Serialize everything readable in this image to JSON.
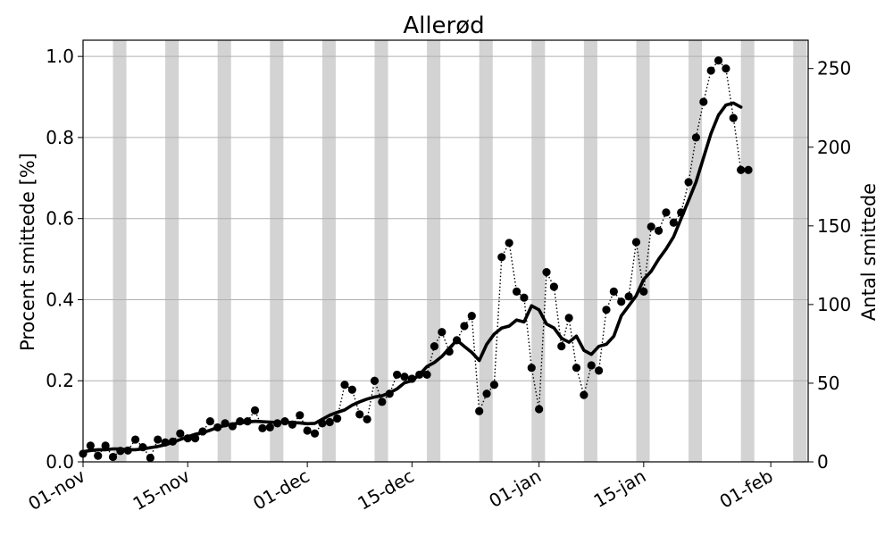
{
  "chart_data": {
    "type": "line",
    "title": "Allerød",
    "ylabel": "Procent smittede [%]",
    "ylabel_right": "Antal smittede",
    "ylim": [
      0,
      1.04
    ],
    "ylim_right": [
      0,
      268
    ],
    "yticks": [
      "0.0",
      "0.2",
      "0.4",
      "0.6",
      "0.8",
      "1.0"
    ],
    "yticks_right": [
      "0",
      "50",
      "100",
      "150",
      "200",
      "250"
    ],
    "xlim": [
      "2020-11-01",
      "2021-02-06"
    ],
    "xticks": [
      {
        "date": "2020-11-01",
        "label": "01-nov"
      },
      {
        "date": "2020-11-15",
        "label": "15-nov"
      },
      {
        "date": "2020-12-01",
        "label": "01-dec"
      },
      {
        "date": "2020-12-15",
        "label": "15-dec"
      },
      {
        "date": "2021-01-01",
        "label": "01-jan"
      },
      {
        "date": "2021-01-15",
        "label": "15-jan"
      },
      {
        "date": "2021-02-01",
        "label": "01-feb"
      }
    ],
    "grid": "horizontal",
    "weekend_shading": [
      "2020-11-05",
      "2020-11-12",
      "2020-11-19",
      "2020-11-26",
      "2020-12-03",
      "2020-12-10",
      "2020-12-17",
      "2020-12-24",
      "2020-12-31",
      "2021-01-07",
      "2021-01-14",
      "2021-01-21",
      "2021-01-28",
      "2021-02-04"
    ],
    "series": [
      {
        "style": "dotted-markers",
        "color": "#000000",
        "x": [
          "2020-11-01",
          "2020-11-02",
          "2020-11-03",
          "2020-11-04",
          "2020-11-05",
          "2020-11-06",
          "2020-11-07",
          "2020-11-08",
          "2020-11-09",
          "2020-11-10",
          "2020-11-11",
          "2020-11-12",
          "2020-11-13",
          "2020-11-14",
          "2020-11-15",
          "2020-11-16",
          "2020-11-17",
          "2020-11-18",
          "2020-11-19",
          "2020-11-20",
          "2020-11-21",
          "2020-11-22",
          "2020-11-23",
          "2020-11-24",
          "2020-11-25",
          "2020-11-26",
          "2020-11-27",
          "2020-11-28",
          "2020-11-29",
          "2020-11-30",
          "2020-12-01",
          "2020-12-02",
          "2020-12-03",
          "2020-12-04",
          "2020-12-05",
          "2020-12-06",
          "2020-12-07",
          "2020-12-08",
          "2020-12-09",
          "2020-12-10",
          "2020-12-11",
          "2020-12-12",
          "2020-12-13",
          "2020-12-14",
          "2020-12-15",
          "2020-12-16",
          "2020-12-17",
          "2020-12-18",
          "2020-12-19",
          "2020-12-20",
          "2020-12-21",
          "2020-12-22",
          "2020-12-23",
          "2020-12-24",
          "2020-12-25",
          "2020-12-26",
          "2020-12-27",
          "2020-12-28",
          "2020-12-29",
          "2020-12-30",
          "2020-12-31",
          "2021-01-01",
          "2021-01-02",
          "2021-01-03",
          "2021-01-04",
          "2021-01-05",
          "2021-01-06",
          "2021-01-07",
          "2021-01-08",
          "2021-01-09",
          "2021-01-10",
          "2021-01-11",
          "2021-01-12",
          "2021-01-13",
          "2021-01-14",
          "2021-01-15",
          "2021-01-16",
          "2021-01-17",
          "2021-01-18",
          "2021-01-19",
          "2021-01-20",
          "2021-01-21",
          "2021-01-22",
          "2021-01-23",
          "2021-01-24",
          "2021-01-25",
          "2021-01-26",
          "2021-01-27",
          "2021-01-28",
          "2021-01-29"
        ],
        "values": [
          0.02,
          0.04,
          0.015,
          0.04,
          0.012,
          0.027,
          0.028,
          0.055,
          0.036,
          0.01,
          0.055,
          0.048,
          0.05,
          0.07,
          0.058,
          0.058,
          0.075,
          0.1,
          0.085,
          0.095,
          0.088,
          0.1,
          0.1,
          0.127,
          0.083,
          0.085,
          0.095,
          0.1,
          0.092,
          0.115,
          0.077,
          0.07,
          0.095,
          0.098,
          0.107,
          0.19,
          0.178,
          0.117,
          0.105,
          0.2,
          0.148,
          0.168,
          0.215,
          0.21,
          0.205,
          0.215,
          0.215,
          0.285,
          0.32,
          0.272,
          0.3,
          0.335,
          0.36,
          0.125,
          0.168,
          0.19,
          0.505,
          0.54,
          0.42,
          0.405,
          0.232,
          0.13,
          0.468,
          0.432,
          0.285,
          0.355,
          0.232,
          0.165,
          0.238,
          0.225,
          0.375,
          0.42,
          0.395,
          0.408,
          0.542,
          0.42,
          0.58,
          0.57,
          0.615,
          0.59,
          0.615,
          0.69,
          0.8,
          0.888,
          0.965,
          0.99,
          0.97,
          0.848,
          0.72,
          0.72
        ]
      },
      {
        "style": "thick-line",
        "color": "#000000",
        "x": [
          "2020-11-01",
          "2020-11-02",
          "2020-11-03",
          "2020-11-04",
          "2020-11-05",
          "2020-11-06",
          "2020-11-07",
          "2020-11-08",
          "2020-11-09",
          "2020-11-10",
          "2020-11-11",
          "2020-11-12",
          "2020-11-13",
          "2020-11-14",
          "2020-11-15",
          "2020-11-16",
          "2020-11-17",
          "2020-11-18",
          "2020-11-19",
          "2020-11-20",
          "2020-11-21",
          "2020-11-22",
          "2020-11-23",
          "2020-11-24",
          "2020-11-25",
          "2020-11-26",
          "2020-11-27",
          "2020-11-28",
          "2020-11-29",
          "2020-11-30",
          "2020-12-01",
          "2020-12-02",
          "2020-12-03",
          "2020-12-04",
          "2020-12-05",
          "2020-12-06",
          "2020-12-07",
          "2020-12-08",
          "2020-12-09",
          "2020-12-10",
          "2020-12-11",
          "2020-12-12",
          "2020-12-13",
          "2020-12-14",
          "2020-12-15",
          "2020-12-16",
          "2020-12-17",
          "2020-12-18",
          "2020-12-19",
          "2020-12-20",
          "2020-12-21",
          "2020-12-22",
          "2020-12-23",
          "2020-12-24",
          "2020-12-25",
          "2020-12-26",
          "2020-12-27",
          "2020-12-28",
          "2020-12-29",
          "2020-12-30",
          "2020-12-31",
          "2021-01-01",
          "2021-01-02",
          "2021-01-03",
          "2021-01-04",
          "2021-01-05",
          "2021-01-06",
          "2021-01-07",
          "2021-01-08",
          "2021-01-09",
          "2021-01-10",
          "2021-01-11",
          "2021-01-12",
          "2021-01-13",
          "2021-01-14",
          "2021-01-15",
          "2021-01-16",
          "2021-01-17",
          "2021-01-18",
          "2021-01-19",
          "2021-01-20",
          "2021-01-21",
          "2021-01-22",
          "2021-01-23",
          "2021-01-24",
          "2021-01-25",
          "2021-01-26",
          "2021-01-27",
          "2021-01-28"
        ],
        "values": [
          0.025,
          0.028,
          0.03,
          0.03,
          0.032,
          0.032,
          0.03,
          0.03,
          0.032,
          0.035,
          0.038,
          0.042,
          0.048,
          0.055,
          0.062,
          0.068,
          0.072,
          0.078,
          0.085,
          0.09,
          0.093,
          0.096,
          0.098,
          0.1,
          0.099,
          0.098,
          0.097,
          0.098,
          0.097,
          0.096,
          0.094,
          0.095,
          0.105,
          0.115,
          0.122,
          0.128,
          0.14,
          0.148,
          0.155,
          0.16,
          0.163,
          0.17,
          0.18,
          0.195,
          0.2,
          0.215,
          0.235,
          0.245,
          0.26,
          0.28,
          0.3,
          0.285,
          0.27,
          0.25,
          0.29,
          0.315,
          0.33,
          0.335,
          0.35,
          0.345,
          0.385,
          0.375,
          0.34,
          0.33,
          0.305,
          0.295,
          0.31,
          0.275,
          0.265,
          0.285,
          0.29,
          0.31,
          0.36,
          0.385,
          0.41,
          0.45,
          0.47,
          0.5,
          0.525,
          0.555,
          0.6,
          0.645,
          0.69,
          0.75,
          0.81,
          0.855,
          0.88,
          0.885,
          0.875
        ]
      }
    ]
  }
}
